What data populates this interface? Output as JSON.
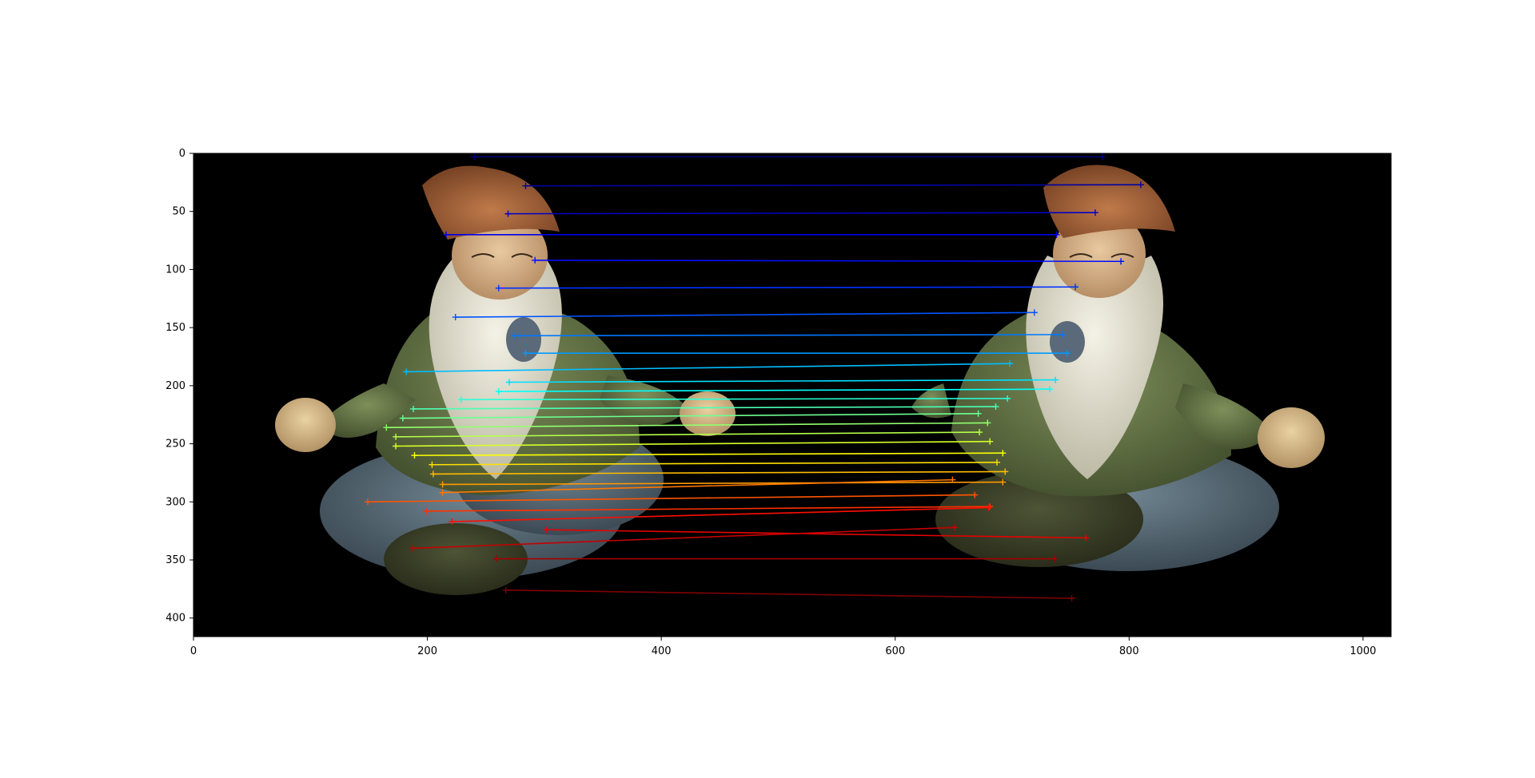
{
  "figure": {
    "description_image": "two-gnome-statues-side-by-side",
    "background_color": "#000000",
    "x_axis": {
      "range": [
        0,
        1024
      ],
      "ticks": [
        0,
        200,
        400,
        600,
        800,
        1000
      ],
      "tick_labels": [
        "0",
        "200",
        "400",
        "600",
        "800",
        "1000"
      ]
    },
    "y_axis": {
      "range": [
        0,
        416
      ],
      "inverted": true,
      "ticks": [
        0,
        50,
        100,
        150,
        200,
        250,
        300,
        350,
        400
      ],
      "tick_labels": [
        "0",
        "50",
        "100",
        "150",
        "200",
        "250",
        "300",
        "350",
        "400"
      ]
    },
    "colormap": "jet",
    "matches": [
      {
        "x1": 240,
        "y1": 3,
        "x2": 777,
        "y2": 3
      },
      {
        "x1": 284,
        "y1": 28,
        "x2": 810,
        "y2": 27
      },
      {
        "x1": 269,
        "y1": 52,
        "x2": 771,
        "y2": 51
      },
      {
        "x1": 216,
        "y1": 70,
        "x2": 738,
        "y2": 70
      },
      {
        "x1": 292,
        "y1": 92,
        "x2": 793,
        "y2": 93
      },
      {
        "x1": 261,
        "y1": 116,
        "x2": 754,
        "y2": 115
      },
      {
        "x1": 224,
        "y1": 141,
        "x2": 719,
        "y2": 137
      },
      {
        "x1": 275,
        "y1": 157,
        "x2": 743,
        "y2": 156
      },
      {
        "x1": 284,
        "y1": 172,
        "x2": 747,
        "y2": 172
      },
      {
        "x1": 182,
        "y1": 188,
        "x2": 698,
        "y2": 181
      },
      {
        "x1": 270,
        "y1": 197,
        "x2": 737,
        "y2": 195
      },
      {
        "x1": 261,
        "y1": 205,
        "x2": 732,
        "y2": 203
      },
      {
        "x1": 229,
        "y1": 212,
        "x2": 696,
        "y2": 211
      },
      {
        "x1": 188,
        "y1": 220,
        "x2": 686,
        "y2": 218
      },
      {
        "x1": 179,
        "y1": 228,
        "x2": 671,
        "y2": 224
      },
      {
        "x1": 165,
        "y1": 236,
        "x2": 679,
        "y2": 232
      },
      {
        "x1": 173,
        "y1": 244,
        "x2": 672,
        "y2": 240
      },
      {
        "x1": 173,
        "y1": 252,
        "x2": 681,
        "y2": 248
      },
      {
        "x1": 189,
        "y1": 260,
        "x2": 692,
        "y2": 258
      },
      {
        "x1": 204,
        "y1": 268,
        "x2": 687,
        "y2": 266
      },
      {
        "x1": 205,
        "y1": 276,
        "x2": 694,
        "y2": 274
      },
      {
        "x1": 213,
        "y1": 285,
        "x2": 692,
        "y2": 283
      },
      {
        "x1": 213,
        "y1": 292,
        "x2": 649,
        "y2": 281
      },
      {
        "x1": 149,
        "y1": 300,
        "x2": 668,
        "y2": 294
      },
      {
        "x1": 199,
        "y1": 308,
        "x2": 681,
        "y2": 304
      },
      {
        "x1": 221,
        "y1": 317,
        "x2": 680,
        "y2": 305
      },
      {
        "x1": 302,
        "y1": 324,
        "x2": 763,
        "y2": 331
      },
      {
        "x1": 188,
        "y1": 340,
        "x2": 651,
        "y2": 322
      },
      {
        "x1": 259,
        "y1": 349,
        "x2": 736,
        "y2": 349
      },
      {
        "x1": 267,
        "y1": 376,
        "x2": 751,
        "y2": 383
      }
    ]
  }
}
